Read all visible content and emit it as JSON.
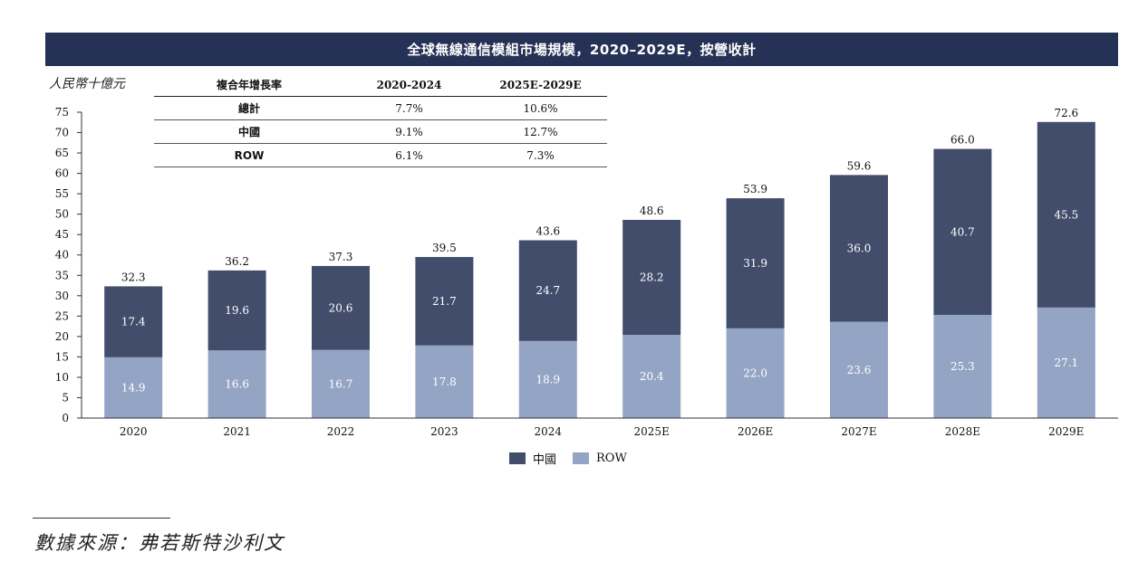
{
  "title": "全球無線通信模組市場規模，2020–2029E，按營收計",
  "unit_label": "人民幣十億元",
  "cagr_table": {
    "header": [
      "複合年增長率",
      "2020-2024",
      "2025E-2029E"
    ],
    "rows": [
      {
        "region": "總計",
        "v1": "7.7%",
        "v2": "10.6%"
      },
      {
        "region": "中國",
        "v1": "9.1%",
        "v2": "12.7%"
      },
      {
        "region": "ROW",
        "v1": "6.1%",
        "v2": "7.3%"
      }
    ]
  },
  "legend": {
    "china": "中國",
    "row": "ROW"
  },
  "source": "數據來源：弗若斯特沙利文",
  "colors": {
    "title_bg": "#263255",
    "china": "#414d6b",
    "row": "#94a4c4"
  },
  "chart_data": {
    "type": "bar",
    "stacked": true,
    "categories": [
      "2020",
      "2021",
      "2022",
      "2023",
      "2024",
      "2025E",
      "2026E",
      "2027E",
      "2028E",
      "2029E"
    ],
    "series": [
      {
        "name": "ROW",
        "values": [
          14.9,
          16.6,
          16.7,
          17.8,
          18.9,
          20.4,
          22.0,
          23.6,
          25.3,
          27.1
        ]
      },
      {
        "name": "中國",
        "values": [
          17.4,
          19.6,
          20.6,
          21.7,
          24.7,
          28.2,
          31.9,
          36.0,
          40.7,
          45.5
        ]
      }
    ],
    "totals": [
      32.3,
      36.2,
      37.3,
      39.5,
      43.6,
      48.6,
      53.9,
      59.6,
      66.0,
      72.6
    ],
    "ylim": [
      0,
      75
    ],
    "yticks": [
      0,
      5,
      10,
      15,
      20,
      25,
      30,
      35,
      40,
      45,
      50,
      55,
      60,
      65,
      70,
      75
    ],
    "ylabel": "人民幣十億元",
    "legend_position": "bottom",
    "grid": false
  }
}
